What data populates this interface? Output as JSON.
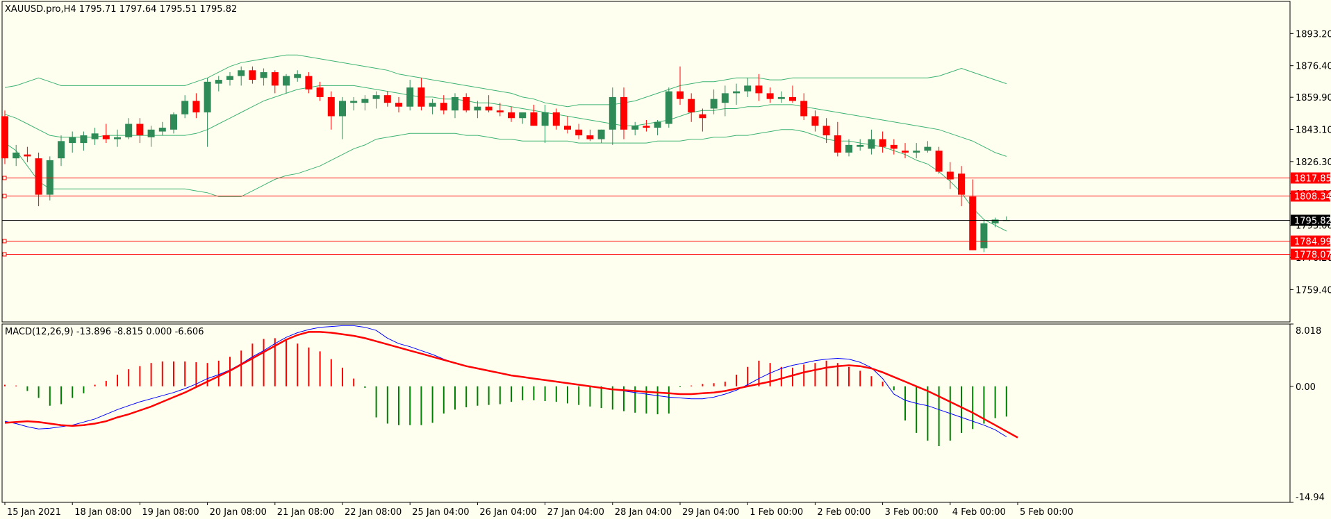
{
  "chart_data": [
    {
      "type": "candlestick",
      "title": "XAUUSD.pro,H4  1795.71 1797.64 1795.51 1795.82",
      "ylim": [
        1742.5,
        1910
      ],
      "y_ticks": [
        "1893.20",
        "1876.40",
        "1859.90",
        "1843.10",
        "1826.30",
        "1809.60",
        "1793.00",
        "1776.20",
        "1759.40"
      ],
      "x_ticks": [
        "15 Jan 2021",
        "18 Jan 08:00",
        "19 Jan 08:00",
        "20 Jan 08:00",
        "21 Jan 08:00",
        "22 Jan 08:00",
        "25 Jan 04:00",
        "26 Jan 04:00",
        "27 Jan 04:00",
        "28 Jan 04:00",
        "29 Jan 04:00",
        "1 Feb 00:00",
        "2 Feb 00:00",
        "3 Feb 00:00",
        "4 Feb 00:00",
        "5 Feb 00:00"
      ],
      "candles": [
        [
          1850,
          1853,
          1825,
          1828
        ],
        [
          1828,
          1835,
          1824,
          1831
        ],
        [
          1830,
          1834,
          1826,
          1829
        ],
        [
          1828,
          1831,
          1803,
          1809
        ],
        [
          1809,
          1829,
          1806,
          1827
        ],
        [
          1828,
          1840,
          1824,
          1837
        ],
        [
          1836,
          1842,
          1831,
          1839
        ],
        [
          1836,
          1842,
          1832,
          1840
        ],
        [
          1838,
          1844,
          1835,
          1841
        ],
        [
          1840,
          1846,
          1836,
          1838
        ],
        [
          1838,
          1843,
          1834,
          1839
        ],
        [
          1839,
          1849,
          1838,
          1846
        ],
        [
          1846,
          1849,
          1836,
          1840
        ],
        [
          1839,
          1845,
          1834,
          1843
        ],
        [
          1842,
          1847,
          1840,
          1844
        ],
        [
          1843,
          1852,
          1841,
          1851
        ],
        [
          1851,
          1861,
          1849,
          1858
        ],
        [
          1858,
          1862,
          1849,
          1852
        ],
        [
          1852,
          1870,
          1834,
          1868
        ],
        [
          1867,
          1871,
          1863,
          1869
        ],
        [
          1869,
          1873,
          1866,
          1871
        ],
        [
          1871,
          1876,
          1866,
          1874
        ],
        [
          1874,
          1876,
          1867,
          1869
        ],
        [
          1870,
          1875,
          1866,
          1873
        ],
        [
          1873,
          1874,
          1862,
          1866
        ],
        [
          1866,
          1872,
          1862,
          1871
        ],
        [
          1870,
          1874,
          1868,
          1872
        ],
        [
          1871,
          1873,
          1862,
          1864
        ],
        [
          1865,
          1868,
          1858,
          1860
        ],
        [
          1860,
          1863,
          1843,
          1850
        ],
        [
          1850,
          1860,
          1838,
          1858
        ],
        [
          1857,
          1860,
          1853,
          1858
        ],
        [
          1857,
          1861,
          1853,
          1859
        ],
        [
          1859,
          1863,
          1854,
          1861
        ],
        [
          1861,
          1863,
          1855,
          1857
        ],
        [
          1857,
          1860,
          1852,
          1855
        ],
        [
          1855,
          1869,
          1853,
          1865
        ],
        [
          1865,
          1870,
          1853,
          1855
        ],
        [
          1855,
          1859,
          1851,
          1857
        ],
        [
          1857,
          1861,
          1851,
          1853
        ],
        [
          1853,
          1862,
          1849,
          1860
        ],
        [
          1860,
          1862,
          1852,
          1853
        ],
        [
          1853,
          1858,
          1849,
          1855
        ],
        [
          1855,
          1861,
          1852,
          1853
        ],
        [
          1853,
          1857,
          1850,
          1852
        ],
        [
          1852,
          1855,
          1847,
          1849
        ],
        [
          1849,
          1852,
          1846,
          1852
        ],
        [
          1852,
          1856,
          1845,
          1845
        ],
        [
          1845,
          1856,
          1836,
          1852
        ],
        [
          1852,
          1854,
          1843,
          1845
        ],
        [
          1845,
          1850,
          1841,
          1843
        ],
        [
          1843,
          1846,
          1838,
          1840
        ],
        [
          1840,
          1843,
          1837,
          1838
        ],
        [
          1838,
          1843,
          1836,
          1843
        ],
        [
          1843,
          1865,
          1835,
          1860
        ],
        [
          1860,
          1865,
          1838,
          1843
        ],
        [
          1843,
          1847,
          1840,
          1845
        ],
        [
          1845,
          1848,
          1842,
          1844
        ],
        [
          1844,
          1848,
          1840,
          1847
        ],
        [
          1846,
          1865,
          1844,
          1863
        ],
        [
          1863,
          1876,
          1856,
          1859
        ],
        [
          1859,
          1862,
          1847,
          1852
        ],
        [
          1851,
          1854,
          1842,
          1849
        ],
        [
          1854,
          1864,
          1851,
          1859
        ],
        [
          1857,
          1866,
          1850,
          1862
        ],
        [
          1862,
          1867,
          1856,
          1863
        ],
        [
          1863,
          1870,
          1860,
          1866
        ],
        [
          1866,
          1872,
          1858,
          1862
        ],
        [
          1862,
          1865,
          1857,
          1859
        ],
        [
          1859,
          1863,
          1857,
          1860
        ],
        [
          1860,
          1866,
          1857,
          1858
        ],
        [
          1858,
          1862,
          1848,
          1850
        ],
        [
          1850,
          1853,
          1842,
          1845
        ],
        [
          1845,
          1849,
          1836,
          1840
        ],
        [
          1840,
          1847,
          1829,
          1831
        ],
        [
          1831,
          1838,
          1829,
          1835
        ],
        [
          1834,
          1838,
          1832,
          1835
        ],
        [
          1833,
          1843,
          1830,
          1838
        ],
        [
          1838,
          1842,
          1831,
          1834
        ],
        [
          1835,
          1838,
          1830,
          1833
        ],
        [
          1832,
          1836,
          1828,
          1831
        ],
        [
          1831,
          1836,
          1828,
          1832
        ],
        [
          1832,
          1837,
          1831,
          1834
        ],
        [
          1832,
          1834,
          1820,
          1821
        ],
        [
          1821,
          1826,
          1812,
          1817
        ],
        [
          1820,
          1824,
          1803,
          1809
        ],
        [
          1808,
          1817,
          1780,
          1780
        ],
        [
          1781,
          1796,
          1779,
          1794
        ],
        [
          1794,
          1797,
          1792,
          1796
        ],
        [
          1795.71,
          1797.64,
          1795.51,
          1795.82
        ]
      ],
      "bb_upper": [
        1865,
        1866,
        1868,
        1870,
        1868,
        1866,
        1866,
        1866,
        1866,
        1866,
        1866,
        1866,
        1866,
        1866,
        1866,
        1866,
        1866,
        1868,
        1870,
        1873,
        1876,
        1878,
        1879,
        1880,
        1881,
        1882,
        1882,
        1881,
        1880,
        1879,
        1878,
        1877,
        1876,
        1875,
        1874,
        1872,
        1871,
        1870,
        1869,
        1868,
        1867,
        1866,
        1865,
        1864,
        1863,
        1862,
        1860,
        1859,
        1857,
        1856,
        1855,
        1856,
        1856,
        1856,
        1856,
        1857,
        1858,
        1860,
        1862,
        1864,
        1866,
        1867,
        1868,
        1868,
        1869,
        1870,
        1870,
        1870,
        1869,
        1869,
        1870,
        1870,
        1870,
        1870,
        1870,
        1870,
        1870,
        1870,
        1870,
        1870,
        1870,
        1870,
        1870,
        1871,
        1873,
        1875,
        1873,
        1871,
        1869,
        1867
      ],
      "bb_middle": [
        1851,
        1849,
        1846,
        1843,
        1840,
        1839,
        1839,
        1839,
        1839,
        1840,
        1840,
        1840,
        1840,
        1840,
        1840,
        1840,
        1840,
        1841,
        1843,
        1846,
        1849,
        1852,
        1855,
        1858,
        1860,
        1862,
        1864,
        1865,
        1866,
        1866,
        1866,
        1866,
        1865,
        1864,
        1863,
        1862,
        1861,
        1860,
        1860,
        1859,
        1859,
        1858,
        1857,
        1857,
        1856,
        1855,
        1854,
        1853,
        1852,
        1851,
        1850,
        1849,
        1848,
        1847,
        1846,
        1845,
        1845,
        1846,
        1847,
        1848,
        1850,
        1852,
        1853,
        1853,
        1854,
        1854,
        1855,
        1855,
        1856,
        1856,
        1856,
        1855,
        1854,
        1853,
        1852,
        1851,
        1850,
        1849,
        1848,
        1847,
        1846,
        1845,
        1844,
        1843,
        1841,
        1839,
        1837,
        1834,
        1831,
        1829
      ],
      "bb_lower": [
        1836,
        1832,
        1824,
        1816,
        1812,
        1812,
        1812,
        1812,
        1812,
        1812,
        1812,
        1812,
        1812,
        1812,
        1812,
        1812,
        1812,
        1811,
        1810,
        1808,
        1808,
        1808,
        1811,
        1814,
        1817,
        1819,
        1820,
        1822,
        1824,
        1827,
        1830,
        1833,
        1835,
        1838,
        1839,
        1840,
        1841,
        1841,
        1841,
        1841,
        1841,
        1840,
        1840,
        1839,
        1838,
        1838,
        1837,
        1837,
        1837,
        1837,
        1837,
        1836,
        1836,
        1836,
        1836,
        1836,
        1836,
        1836,
        1837,
        1837,
        1837,
        1838,
        1838,
        1839,
        1839,
        1840,
        1840,
        1841,
        1842,
        1843,
        1843,
        1842,
        1840,
        1838,
        1837,
        1837,
        1836,
        1835,
        1834,
        1832,
        1830,
        1827,
        1825,
        1821,
        1816,
        1810,
        1802,
        1796,
        1793,
        1790
      ],
      "h_lines": [
        {
          "price": 1817.85,
          "label": "1817.85",
          "color": "#FF0000"
        },
        {
          "price": 1808.34,
          "label": "1808.34",
          "color": "#FF0000"
        },
        {
          "price": 1784.99,
          "label": "1784.99",
          "color": "#FF0000"
        },
        {
          "price": 1778.07,
          "label": "1778.07",
          "color": "#FF0000"
        }
      ],
      "current_price": {
        "price": 1795.82,
        "label": "1795.82",
        "color": "#000000"
      },
      "colors": {
        "bull": "#2E8B57",
        "bear": "#FF0000",
        "bands": "#3CB371",
        "background": "#FFFFF0"
      }
    },
    {
      "type": "bar+line",
      "title": "MACD(12,26,9) -13.896 -8.815 0.000 -6.606",
      "ylim": [
        -14.94,
        8.018
      ],
      "y_ticks": [
        "8.018",
        "0.00",
        "-14.94"
      ],
      "histogram": [
        0.2,
        0.1,
        -0.6,
        -1.5,
        -2.5,
        -2.3,
        -1.5,
        -0.9,
        0.2,
        0.7,
        1.5,
        2.2,
        2.6,
        3.0,
        3.2,
        3.2,
        3.2,
        3.1,
        3.0,
        3.3,
        3.8,
        4.6,
        5.5,
        6.1,
        6.2,
        5.9,
        5.5,
        5.0,
        4.5,
        3.5,
        2.4,
        1.0,
        -0.2,
        -4.0,
        -4.8,
        -5.0,
        -5.0,
        -5.0,
        -4.7,
        -3.5,
        -3.0,
        -2.7,
        -2.5,
        -2.4,
        -2.3,
        -2.0,
        -1.8,
        -1.8,
        -1.9,
        -2.0,
        -2.2,
        -2.4,
        -2.6,
        -2.8,
        -3.0,
        -3.2,
        -3.4,
        -3.5,
        -3.6,
        -3.5,
        -0.1,
        0.1,
        0.3,
        0.4,
        0.6,
        1.5,
        2.5,
        3.3,
        3.0,
        2.5,
        2.4,
        2.8,
        3.0,
        3.3,
        3.0,
        2.5,
        2.0,
        1.3,
        0.6,
        -0.5,
        -4.4,
        -6.0,
        -7.0,
        -7.7,
        -7.0,
        -6.0,
        -5.5,
        -4.8,
        -4.1,
        -3.9
      ],
      "macd": [
        -4.5,
        -4.8,
        -5.2,
        -5.5,
        -5.4,
        -5.2,
        -5.0,
        -4.6,
        -4.2,
        -3.6,
        -3.0,
        -2.5,
        -2.0,
        -1.6,
        -1.2,
        -0.8,
        -0.3,
        0.3,
        1.0,
        1.5,
        2.1,
        2.9,
        3.8,
        4.6,
        5.5,
        6.3,
        6.9,
        7.3,
        7.6,
        7.7,
        7.8,
        7.8,
        7.6,
        7.2,
        6.2,
        5.5,
        5.1,
        4.6,
        4.1,
        3.5,
        3.0,
        2.6,
        2.3,
        2.0,
        1.7,
        1.4,
        1.2,
        1.0,
        0.8,
        0.6,
        0.4,
        0.2,
        0.0,
        -0.2,
        -0.4,
        -0.6,
        -0.8,
        -1.0,
        -1.2,
        -1.4,
        -1.5,
        -1.6,
        -1.6,
        -1.4,
        -1.0,
        -0.5,
        0.2,
        1.0,
        1.7,
        2.3,
        2.7,
        3.0,
        3.3,
        3.5,
        3.6,
        3.5,
        3.1,
        2.4,
        1.0,
        -1.0,
        -1.8,
        -2.2,
        -2.5,
        -3.0,
        -3.5,
        -4.0,
        -4.5,
        -5.0,
        -5.6,
        -6.5
      ],
      "signal": [
        -4.7,
        -4.6,
        -4.5,
        -4.6,
        -4.8,
        -5.0,
        -5.1,
        -5.0,
        -4.8,
        -4.5,
        -4.0,
        -3.6,
        -3.1,
        -2.6,
        -2.0,
        -1.4,
        -0.8,
        -0.1,
        0.6,
        1.3,
        2.0,
        2.8,
        3.6,
        4.4,
        5.2,
        6.0,
        6.6,
        7.0,
        7.0,
        6.9,
        6.7,
        6.5,
        6.2,
        5.8,
        5.4,
        5.0,
        4.6,
        4.2,
        3.8,
        3.4,
        3.0,
        2.6,
        2.3,
        2.0,
        1.7,
        1.4,
        1.2,
        1.0,
        0.8,
        0.6,
        0.4,
        0.2,
        0.0,
        -0.2,
        -0.4,
        -0.5,
        -0.6,
        -0.7,
        -0.8,
        -0.9,
        -1.0,
        -1.0,
        -0.9,
        -0.8,
        -0.6,
        -0.3,
        0.0,
        0.3,
        0.6,
        1.0,
        1.4,
        1.8,
        2.1,
        2.4,
        2.6,
        2.7,
        2.6,
        2.3,
        1.8,
        1.2,
        0.6,
        0.0,
        -0.6,
        -1.3,
        -2.0,
        -2.7,
        -3.4,
        -4.2,
        -5.0,
        -5.8,
        -6.6
      ],
      "colors": {
        "hist_pos": "#FF0000",
        "hist_neg": "#008000",
        "macd": "#0000FF",
        "signal": "#FF0000"
      }
    }
  ]
}
